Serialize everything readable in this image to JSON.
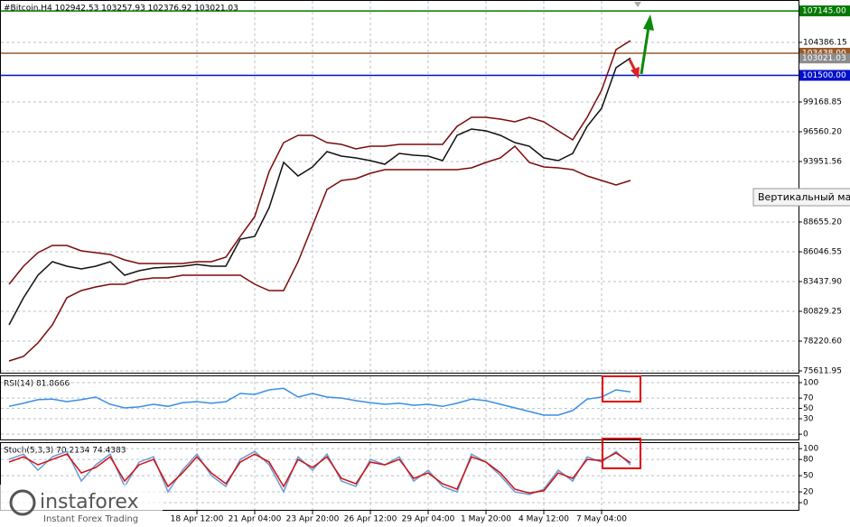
{
  "chart_data": [
    {
      "type": "line",
      "title": "#Bitcoin,H4  102942.53 103257.93 102376.92 103021.03",
      "categories": [
        null,
        null,
        null,
        null,
        null,
        null,
        null,
        null,
        null,
        null,
        null,
        null,
        null,
        "18 Apr 12:00",
        null,
        null,
        null,
        "21 Apr 04:00",
        null,
        null,
        null,
        "23 Apr 20:00",
        null,
        null,
        null,
        "26 Apr 12:00",
        null,
        null,
        null,
        "29 Apr 04:00",
        null,
        null,
        null,
        "1 May 20:00",
        null,
        null,
        null,
        "4 May 12:00",
        null,
        null,
        null,
        "7 May 04:00",
        null,
        null
      ],
      "series": [
        {
          "color": "#111111",
          "values": [
            79643,
            82015,
            83991,
            85177,
            84782,
            84544,
            84782,
            85177,
            83991,
            84386,
            84623,
            84703,
            84782,
            84940,
            84782,
            84782,
            87153,
            87390,
            89920,
            93872,
            92687,
            93477,
            94821,
            94426,
            94268,
            94030,
            93714,
            94663,
            94505,
            94426,
            94030,
            96244,
            96797,
            96639,
            96244,
            95611,
            95295,
            94268,
            94030,
            94663,
            97034,
            98615,
            102173,
            103021
          ]
        },
        {
          "color": "#7b0a0a",
          "values": [
            83201,
            84782,
            85967,
            86600,
            86600,
            86125,
            85967,
            85809,
            85335,
            85019,
            85019,
            85019,
            85019,
            85177,
            85177,
            85572,
            87390,
            89129,
            93082,
            95611,
            96244,
            96244,
            95611,
            95453,
            95058,
            95295,
            95295,
            95453,
            95453,
            95453,
            95453,
            97034,
            97825,
            97825,
            97667,
            97430,
            97825,
            97430,
            96639,
            95849,
            97825,
            100196,
            103754,
            104544
          ]
        },
        {
          "color": "#7b0a0a",
          "values": [
            76481,
            76877,
            78062,
            79643,
            82015,
            82647,
            82963,
            83201,
            83201,
            83596,
            83754,
            83754,
            83991,
            83991,
            83991,
            83991,
            83991,
            83201,
            82647,
            82647,
            85177,
            88339,
            91501,
            92291,
            92449,
            92924,
            93240,
            93240,
            93240,
            93240,
            93240,
            93240,
            93398,
            93872,
            94268,
            95295,
            93872,
            93477,
            93398,
            93240,
            92687,
            92291,
            91896,
            92291
          ]
        }
      ],
      "ylim": [
        75375,
        108100
      ],
      "yticks": [
        104386.15,
        99168.85,
        {
          "value": 96560.2,
          "label": "96560.20"
        },
        93951.56,
        {
          "value": 88655.2,
          "label": "88655.20"
        },
        86046.55,
        {
          "value": 83437.9,
          "label": "83437.90"
        },
        80829.25,
        {
          "value": 78220.6,
          "label": "78220.60"
        },
        75611.95
      ],
      "levels": [
        {
          "value": 107145,
          "label": "107145.00",
          "color": "#007a00"
        },
        {
          "value": 103438,
          "label": "103438.00",
          "color": "#9a5a2a"
        },
        {
          "value": 101500,
          "label": "101500.00",
          "color": "#0010c8"
        }
      ],
      "current": {
        "value": 103021.03,
        "label": "103021.03",
        "color": "#8c8c8c"
      },
      "grid": true
    },
    {
      "type": "line",
      "title": "RSI(14) 81.8666",
      "series": [
        {
          "color": "#3a8ee6",
          "values": [
            54,
            60,
            67,
            68,
            63,
            67,
            72,
            58,
            51,
            53,
            58,
            54,
            61,
            63,
            60,
            63,
            79,
            77,
            86,
            89,
            72,
            79,
            72,
            70,
            65,
            61,
            58,
            60,
            56,
            58,
            54,
            60,
            68,
            65,
            58,
            51,
            44,
            37,
            37,
            46,
            68,
            72,
            86,
            82
          ]
        }
      ],
      "ylim": [
        -12,
        114
      ],
      "yticks": [
        0,
        30,
        50,
        70,
        100
      ],
      "grid": true
    },
    {
      "type": "line",
      "title": "Stoch(5,3,3) 70.2134 74.4383",
      "series": [
        {
          "color": "#6a9ad6",
          "values": [
            80,
            90,
            60,
            85,
            95,
            40,
            70,
            90,
            30,
            75,
            85,
            20,
            60,
            90,
            50,
            30,
            80,
            95,
            70,
            20,
            85,
            60,
            90,
            40,
            30,
            80,
            70,
            85,
            40,
            60,
            30,
            20,
            90,
            75,
            50,
            20,
            15,
            25,
            60,
            40,
            85,
            75,
            95,
            70
          ]
        },
        {
          "color": "#d01010",
          "values": [
            75,
            85,
            70,
            80,
            90,
            55,
            65,
            85,
            40,
            70,
            80,
            30,
            55,
            85,
            55,
            35,
            75,
            90,
            75,
            30,
            80,
            65,
            85,
            45,
            35,
            75,
            70,
            80,
            45,
            55,
            35,
            25,
            85,
            75,
            55,
            25,
            18,
            22,
            55,
            45,
            80,
            78,
            92,
            74
          ]
        }
      ],
      "ylim": [
        -15,
        112
      ],
      "yticks": [
        0,
        20,
        50,
        80,
        100
      ],
      "grid": true
    }
  ],
  "tooltip": "Вертикальный мас",
  "logo": {
    "name": "instaforex",
    "tagline": "Instant Forex Trading"
  }
}
